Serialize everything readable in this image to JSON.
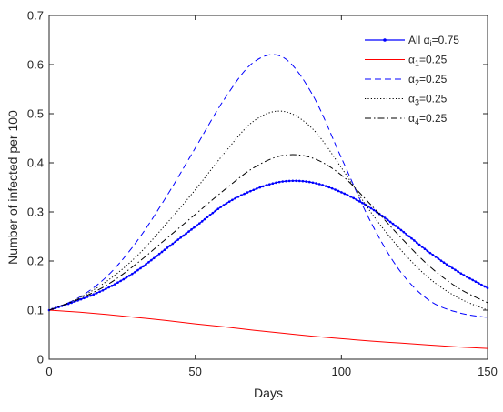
{
  "chart_data": {
    "type": "line",
    "title": "",
    "xlabel": "Days",
    "ylabel": "Number of infected per 100",
    "xlim": [
      0,
      150
    ],
    "ylim": [
      0,
      0.7
    ],
    "xticks": [
      0,
      50,
      100,
      150
    ],
    "xtick_labels": [
      "0",
      "50",
      "100",
      "150"
    ],
    "yticks": [
      0,
      0.1,
      0.2,
      0.3,
      0.4,
      0.5,
      0.6,
      0.7
    ],
    "ytick_labels": [
      "0",
      "0.1",
      "0.2",
      "0.3",
      "0.4",
      "0.5",
      "0.6",
      "0.7"
    ],
    "grid": false,
    "legend_position": "top-right",
    "x": [
      0,
      10,
      20,
      30,
      40,
      50,
      60,
      70,
      80,
      90,
      100,
      110,
      120,
      130,
      140,
      150
    ],
    "series": [
      {
        "name": "All α_i=0.75",
        "legend": {
          "main": "All α",
          "sub": "i",
          "suffix": "=0.75"
        },
        "color": "#0000ff",
        "dash": "solid",
        "markers": true,
        "values": [
          0.1,
          0.12,
          0.145,
          0.18,
          0.225,
          0.27,
          0.315,
          0.345,
          0.362,
          0.36,
          0.34,
          0.308,
          0.265,
          0.218,
          0.178,
          0.145
        ]
      },
      {
        "name": "α_1=0.25",
        "legend": {
          "main": "α",
          "sub": "1",
          "suffix": "=0.25"
        },
        "color": "#ff0000",
        "dash": "solid",
        "markers": false,
        "values": [
          0.1,
          0.096,
          0.091,
          0.085,
          0.079,
          0.072,
          0.066,
          0.059,
          0.053,
          0.047,
          0.042,
          0.037,
          0.033,
          0.029,
          0.025,
          0.022
        ]
      },
      {
        "name": "α_2=0.25",
        "legend": {
          "main": "α",
          "sub": "2",
          "suffix": "=0.25"
        },
        "color": "#0000ff",
        "dash": "dashed",
        "markers": false,
        "values": [
          0.1,
          0.125,
          0.17,
          0.24,
          0.33,
          0.43,
          0.53,
          0.605,
          0.615,
          0.54,
          0.41,
          0.28,
          0.18,
          0.12,
          0.095,
          0.085
        ]
      },
      {
        "name": "α_3=0.25",
        "legend": {
          "main": "α",
          "sub": "3",
          "suffix": "=0.25"
        },
        "color": "#000000",
        "dash": "dotted",
        "markers": false,
        "values": [
          0.1,
          0.124,
          0.16,
          0.21,
          0.275,
          0.345,
          0.42,
          0.485,
          0.505,
          0.47,
          0.39,
          0.3,
          0.225,
          0.165,
          0.125,
          0.1
        ]
      },
      {
        "name": "α_4=0.25",
        "legend": {
          "main": "α",
          "sub": "4",
          "suffix": "=0.25"
        },
        "color": "#000000",
        "dash": "dashdot",
        "markers": false,
        "values": [
          0.1,
          0.122,
          0.152,
          0.195,
          0.245,
          0.295,
          0.345,
          0.39,
          0.415,
          0.41,
          0.375,
          0.315,
          0.25,
          0.19,
          0.145,
          0.115
        ]
      }
    ]
  }
}
